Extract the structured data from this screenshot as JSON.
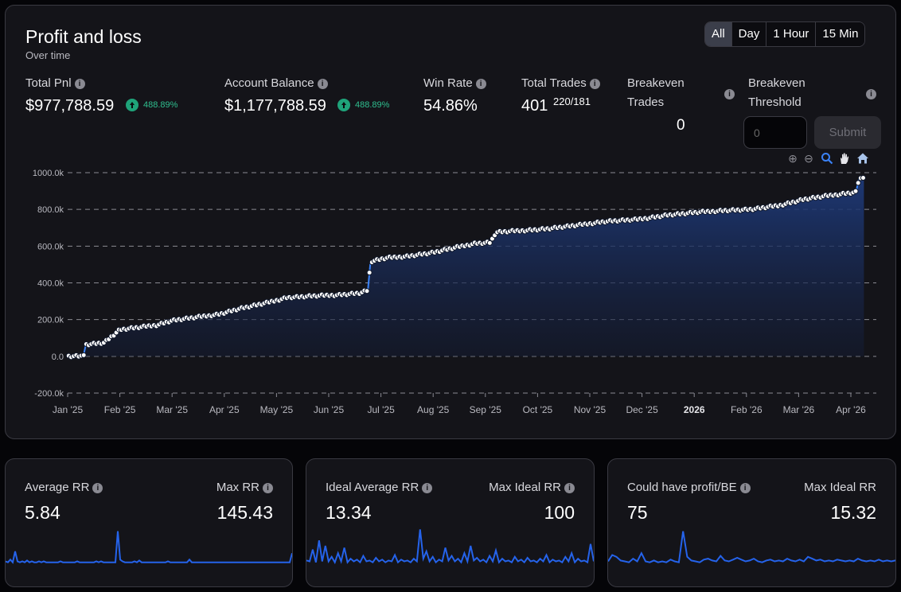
{
  "header": {
    "title": "Profit and loss",
    "subtitle": "Over time",
    "timeframes": [
      "All",
      "Day",
      "1 Hour",
      "15 Min"
    ],
    "active_timeframe": "All"
  },
  "stats": {
    "total_pnl": {
      "label": "Total Pnl",
      "value": "$977,788.59",
      "change": "488.89%"
    },
    "account_balance": {
      "label": "Account Balance",
      "value": "$1,177,788.59",
      "change": "488.89%"
    },
    "win_rate": {
      "label": "Win Rate",
      "value": "54.86%"
    },
    "total_trades": {
      "label": "Total Trades",
      "value": "401",
      "split": "220/181"
    },
    "breakeven_trades": {
      "label_line1": "Breakeven",
      "label_line2": "Trades",
      "value": "0"
    },
    "breakeven_threshold": {
      "label_line1": "Breakeven",
      "label_line2": "Threshold",
      "input_placeholder": "0",
      "submit_label": "Submit"
    }
  },
  "toolbar_icons": [
    "zoom-in-icon",
    "zoom-out-icon",
    "zoom-select-icon",
    "pan-hand-icon",
    "home-reset-icon"
  ],
  "colors": {
    "line": "#3b82f6",
    "fill_top": "#1e3a7a",
    "positive": "#2fbf8f",
    "active_tab": "#3b3e4a"
  },
  "chart_data": {
    "type": "area",
    "ylim": [
      -200000,
      1000000
    ],
    "y_ticks": [
      "-200.0k",
      "0.0",
      "200.0k",
      "400.0k",
      "600.0k",
      "800.0k",
      "1000.0k"
    ],
    "x_ticks": [
      "Jan '25",
      "Feb '25",
      "Mar '25",
      "Apr '25",
      "May '25",
      "Jun '25",
      "Jul '25",
      "Aug '25",
      "Sep '25",
      "Oct '25",
      "Nov '25",
      "Dec '25",
      "2026",
      "Feb '26",
      "Mar '26",
      "Apr '26"
    ],
    "grid": true,
    "series": [
      {
        "values_month_index": [
          0,
          0.3,
          0.35,
          0.7,
          1.0,
          1.3,
          1.7,
          2.0,
          2.4,
          2.9,
          3.3,
          3.8,
          4.2,
          4.8,
          5.2,
          5.6,
          5.75,
          5.8,
          6.1,
          6.5,
          7.0,
          7.4,
          7.8,
          8.1,
          8.2,
          8.7,
          9.2,
          9.8,
          10.3,
          10.9,
          11.5,
          12.1,
          12.6,
          13.1,
          13.6,
          14.1,
          14.7,
          15.1,
          15.15,
          15.25
        ],
        "values": [
          0,
          0,
          65000,
          75000,
          145000,
          155000,
          170000,
          195000,
          210000,
          230000,
          260000,
          290000,
          320000,
          330000,
          335000,
          345000,
          360000,
          515000,
          535000,
          545000,
          565000,
          590000,
          615000,
          620000,
          675000,
          685000,
          695000,
          715000,
          735000,
          745000,
          770000,
          785000,
          795000,
          800000,
          820000,
          855000,
          880000,
          895000,
          960000,
          980000
        ]
      }
    ]
  },
  "mini_cards": [
    {
      "left_label": "Average RR",
      "left_value": "5.84",
      "right_label": "Max RR",
      "right_value": "145.43",
      "spark": [
        3,
        2,
        5,
        2,
        14,
        3,
        2,
        3,
        2,
        4,
        2,
        3,
        2,
        2,
        3,
        2,
        3,
        2,
        2,
        2,
        2,
        2,
        2,
        3,
        2,
        2,
        2,
        2,
        2,
        2,
        3,
        2,
        2,
        2,
        2,
        2,
        2,
        2,
        3,
        2,
        3,
        2,
        2,
        2,
        2,
        2,
        2,
        36,
        5,
        3,
        2,
        2,
        2,
        2,
        3,
        2,
        4,
        2,
        2,
        2,
        2,
        2,
        2,
        2,
        2,
        2,
        2,
        2,
        3,
        2,
        2,
        2,
        2,
        2,
        2,
        2,
        2,
        5,
        2,
        2,
        2,
        2,
        2,
        2,
        2,
        2,
        2,
        2,
        2,
        2,
        2,
        2,
        2,
        2,
        2,
        2,
        2,
        2,
        2,
        2,
        2,
        2,
        2,
        2,
        2,
        2,
        2,
        2,
        2,
        2,
        2,
        2,
        2,
        2,
        2,
        2,
        2,
        2,
        2,
        2,
        12
      ]
    },
    {
      "left_label": "Ideal Average RR",
      "left_value": "13.34",
      "right_label": "Max Ideal RR",
      "right_value": "100",
      "spark": [
        4,
        3,
        16,
        2,
        26,
        3,
        20,
        3,
        8,
        2,
        12,
        3,
        18,
        2,
        6,
        3,
        5,
        2,
        9,
        3,
        4,
        2,
        7,
        3,
        5,
        2,
        4,
        3,
        10,
        2,
        5,
        3,
        4,
        2,
        6,
        3,
        38,
        6,
        14,
        3,
        8,
        2,
        5,
        3,
        18,
        4,
        9,
        3,
        6,
        2,
        12,
        3,
        20,
        4,
        7,
        3,
        5,
        2,
        9,
        3,
        15,
        2,
        6,
        3,
        4,
        2,
        8,
        3,
        5,
        2,
        7,
        3,
        4,
        2,
        6,
        3,
        10,
        2,
        5,
        3,
        4,
        2,
        8,
        3,
        12,
        2,
        6,
        3,
        4,
        2,
        22,
        3
      ]
    },
    {
      "left_label": "Could have profit/BE",
      "left_value": "75",
      "right_label": "Max Ideal RR",
      "right_value": "15.32",
      "spark": [
        3,
        10,
        8,
        4,
        3,
        2,
        6,
        3,
        12,
        3,
        2,
        4,
        2,
        3,
        2,
        5,
        3,
        2,
        36,
        8,
        4,
        3,
        2,
        5,
        6,
        4,
        3,
        9,
        4,
        3,
        5,
        7,
        5,
        3,
        4,
        6,
        3,
        2,
        4,
        5,
        3,
        4,
        3,
        6,
        4,
        3,
        5,
        3,
        8,
        6,
        4,
        5,
        3,
        4,
        3,
        5,
        4,
        3,
        4,
        3,
        6,
        4,
        3,
        4,
        3,
        5,
        3,
        4,
        3,
        4
      ]
    }
  ]
}
